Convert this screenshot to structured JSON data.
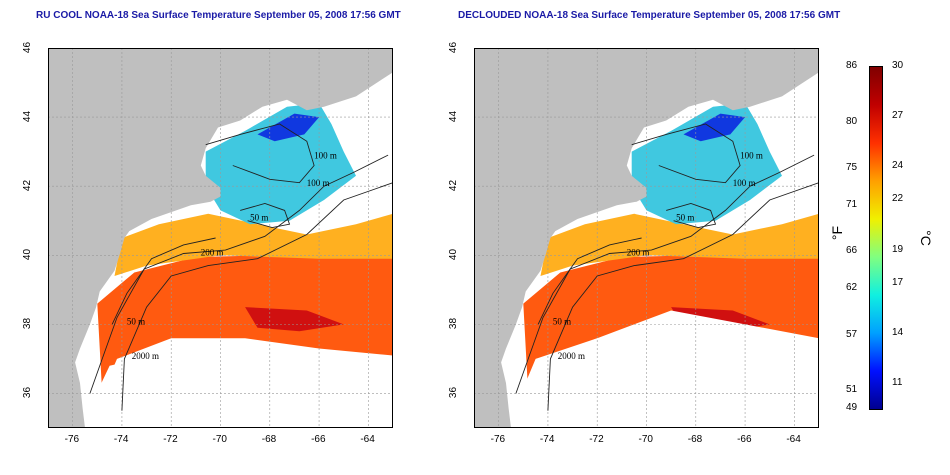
{
  "titles": {
    "left": "RU COOL NOAA-18 Sea Surface Temperature September 05, 2008 17:56 GMT",
    "right": "DECLOUDED NOAA-18 Sea Surface Temperature September 05, 2008 17:56 GMT"
  },
  "axes": {
    "lon_ticks": [
      "-76",
      "-74",
      "-72",
      "-70",
      "-68",
      "-66",
      "-64"
    ],
    "lat_ticks": [
      "36",
      "38",
      "40",
      "42",
      "44",
      "46"
    ],
    "lon_range": [
      -77.0,
      -63.0
    ],
    "lat_range": [
      35.0,
      46.0
    ]
  },
  "contours": {
    "labels": [
      "100 m",
      "100 m",
      "50 m",
      "200 m",
      "50 m",
      "2000 m"
    ]
  },
  "colorbar": {
    "fahrenheit_ticks": [
      "86",
      "80",
      "75",
      "71",
      "66",
      "62",
      "57",
      "51",
      "49"
    ],
    "celsius_ticks": [
      "30",
      "27",
      "24",
      "22",
      "19",
      "17",
      "14",
      "11"
    ],
    "unit_f": "°F",
    "unit_c": "°C",
    "range_c": [
      9.5,
      30
    ],
    "colors": [
      "#00008f",
      "#0010ff",
      "#00a0ff",
      "#10f0e0",
      "#80ff80",
      "#f0f000",
      "#ffa000",
      "#ff3000",
      "#c00000",
      "#800000"
    ]
  },
  "colors": {
    "land": "#bfbfbf",
    "ocean_cloud": "#ffffff",
    "title": "#1a1aa6"
  }
}
